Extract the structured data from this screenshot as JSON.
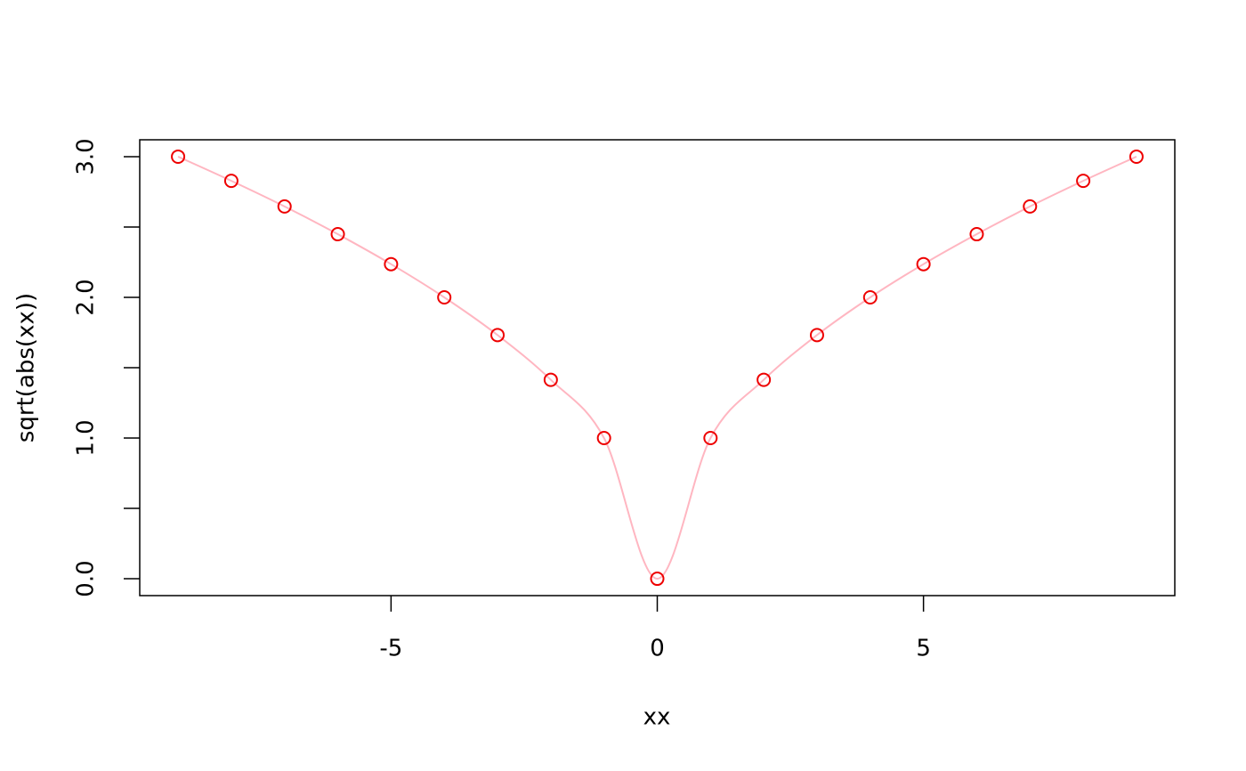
{
  "chart_data": {
    "type": "scatter",
    "x_label": "xx",
    "y_label": "sqrt(abs(xx))",
    "x": [
      -9,
      -8,
      -7,
      -6,
      -5,
      -4,
      -3,
      -2,
      -1,
      0,
      1,
      2,
      3,
      4,
      5,
      6,
      7,
      8,
      9
    ],
    "values": [
      3,
      2.828,
      2.646,
      2.449,
      2.236,
      2,
      1.732,
      1.414,
      1,
      0,
      1,
      1.414,
      1.732,
      2,
      2.236,
      2.449,
      2.646,
      2.828,
      3
    ],
    "color": "#ee0000",
    "line_color": "#ffb6c1",
    "smooth_line": true,
    "xlim": [
      -9.72,
      9.72
    ],
    "ylim": [
      -0.12,
      3.12
    ],
    "xticks": [
      -5,
      0,
      5
    ],
    "yticks": [
      {
        "value": 0,
        "label": "0.0"
      },
      {
        "value": 0.5,
        "label": null
      },
      {
        "value": 1,
        "label": "1.0"
      },
      {
        "value": 1.5,
        "label": null
      },
      {
        "value": 2,
        "label": "2.0"
      },
      {
        "value": 2.5,
        "label": null
      },
      {
        "value": 3,
        "label": "3.0"
      }
    ],
    "grid": false
  }
}
